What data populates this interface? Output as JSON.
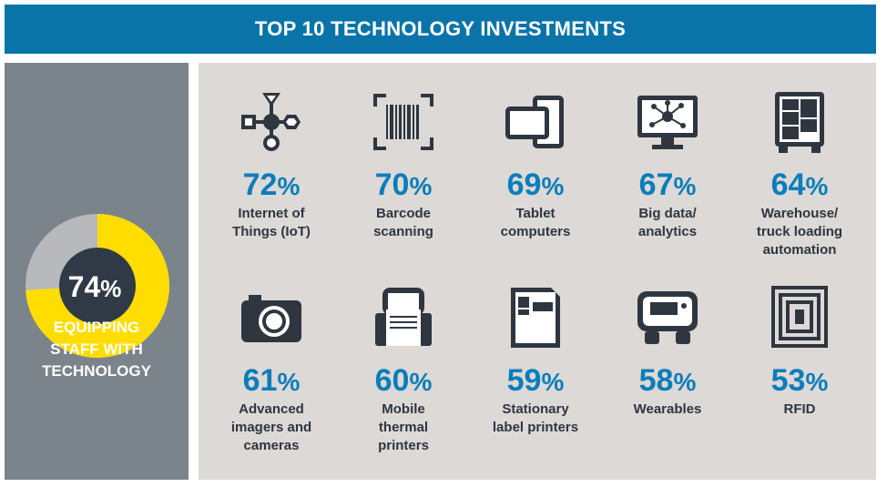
{
  "header": {
    "title": "TOP 10 TECHNOLOGY INVESTMENTS"
  },
  "colors": {
    "header": "#0a74a8",
    "percent": "#0a7dbb",
    "donut_fill": "#ffdd00",
    "donut_rest": "#b8b9bc",
    "donut_center": "#2f3a46",
    "left_panel": "#7b838b",
    "right_panel": "#dcd9d6"
  },
  "summary": {
    "value": 74,
    "value_label": "74",
    "unit": "%",
    "label": "EQUIPPING\nSTAFF WITH\nTECHNOLOGY"
  },
  "items": [
    {
      "value": "72",
      "unit": "%",
      "label": "Internet of\nThings (IoT)",
      "icon": "iot-icon"
    },
    {
      "value": "70",
      "unit": "%",
      "label": "Barcode\nscanning",
      "icon": "barcode-icon"
    },
    {
      "value": "69",
      "unit": "%",
      "label": "Tablet\ncomputers",
      "icon": "tablet-icon"
    },
    {
      "value": "67",
      "unit": "%",
      "label": "Big data/\nanalytics",
      "icon": "monitor-network-icon"
    },
    {
      "value": "64",
      "unit": "%",
      "label": "Warehouse/\ntruck loading\nautomation",
      "icon": "truck-loading-icon"
    },
    {
      "value": "61",
      "unit": "%",
      "label": "Advanced\nimagers and\ncameras",
      "icon": "camera-icon"
    },
    {
      "value": "60",
      "unit": "%",
      "label": "Mobile\nthermal\nprinters",
      "icon": "mobile-printer-icon"
    },
    {
      "value": "59",
      "unit": "%",
      "label": "Stationary\nlabel printers",
      "icon": "label-printer-icon"
    },
    {
      "value": "58",
      "unit": "%",
      "label": "Wearables",
      "icon": "wearable-icon"
    },
    {
      "value": "53",
      "unit": "%",
      "label": "RFID",
      "icon": "rfid-icon"
    }
  ]
}
